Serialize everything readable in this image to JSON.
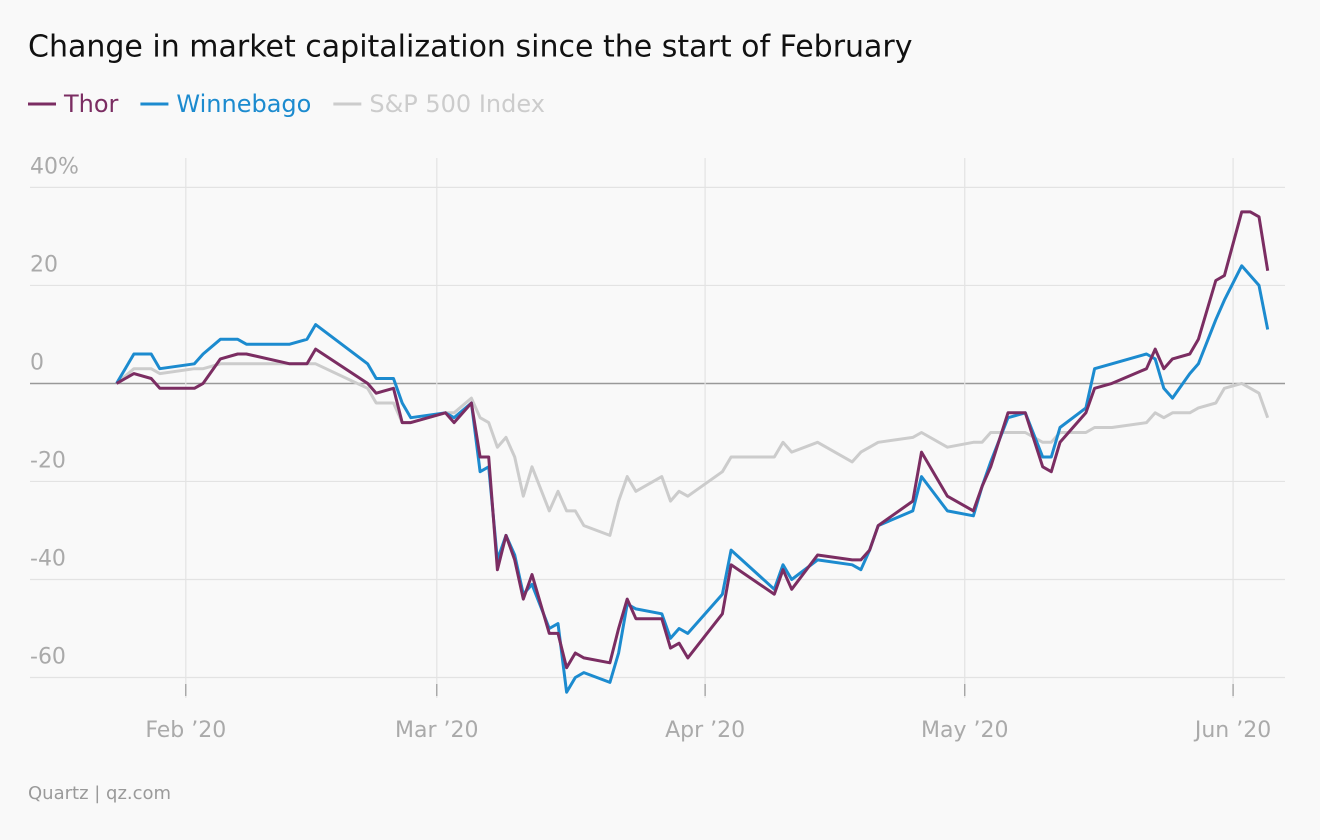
{
  "chart_data": {
    "type": "line",
    "title": "Change in market capitalization since the start of February",
    "source": "Quartz | qz.com",
    "x": [
      24,
      26,
      28,
      29,
      33,
      34,
      36,
      38,
      39,
      44,
      46,
      47,
      53,
      54,
      56,
      57,
      58,
      62,
      63,
      65,
      66,
      67,
      68,
      69,
      70,
      71,
      72,
      74,
      75,
      76,
      77,
      78,
      81,
      82,
      83,
      84,
      87,
      88,
      89,
      90,
      94,
      95,
      100,
      101,
      102,
      105,
      109,
      110,
      111,
      112,
      116,
      117,
      120,
      123,
      124,
      125,
      127,
      129,
      131,
      132,
      133,
      136,
      137,
      139,
      143,
      144,
      145,
      146,
      148,
      149,
      151,
      152,
      154,
      155,
      156,
      157
    ],
    "series": [
      {
        "name": "Thor",
        "color": "#7b2d62",
        "values": [
          0,
          2,
          1,
          -1,
          -1,
          0,
          5,
          6,
          6,
          4,
          4,
          7,
          0,
          -2,
          -1,
          -8,
          -8,
          -6,
          -8,
          -4,
          -15,
          -15,
          -38,
          -31,
          -36,
          -44,
          -39,
          -51,
          -51,
          -58,
          -55,
          -56,
          -57,
          -50,
          -44,
          -48,
          -48,
          -54,
          -53,
          -56,
          -47,
          -37,
          -43,
          -38,
          -42,
          -35,
          -36,
          -36,
          -34,
          -29,
          -24,
          -14,
          -23,
          -26,
          -21,
          -17,
          -6,
          -6,
          -17,
          -18,
          -12,
          -6,
          -1,
          0,
          3,
          7,
          3,
          5,
          6,
          9,
          21,
          22,
          35,
          35,
          34,
          23
        ]
      },
      {
        "name": "Winnebago",
        "color": "#1c8bcf",
        "values": [
          0,
          6,
          6,
          3,
          4,
          6,
          9,
          9,
          8,
          8,
          9,
          12,
          4,
          1,
          1,
          -4,
          -7,
          -6,
          -7,
          -4,
          -18,
          -17,
          -36,
          -31,
          -35,
          -43,
          -41,
          -50,
          -49,
          -63,
          -60,
          -59,
          -61,
          -55,
          -45,
          -46,
          -47,
          -52,
          -50,
          -51,
          -43,
          -34,
          -42,
          -37,
          -40,
          -36,
          -37,
          -38,
          -34,
          -29,
          -26,
          -19,
          -26,
          -27,
          -21,
          -16,
          -7,
          -6,
          -15,
          -15,
          -9,
          -5,
          3,
          4,
          6,
          5,
          -1,
          -3,
          2,
          4,
          13,
          17,
          24,
          22,
          20,
          11
        ]
      },
      {
        "name": "S&P 500 Index",
        "color": "#cccccc",
        "values": [
          0,
          3,
          3,
          2,
          3,
          3,
          4,
          4,
          4,
          4,
          4,
          4,
          -1,
          -4,
          -4,
          -8,
          -8,
          -6,
          -6,
          -3,
          -7,
          -8,
          -13,
          -11,
          -15,
          -23,
          -17,
          -26,
          -22,
          -26,
          -26,
          -29,
          -31,
          -24,
          -19,
          -22,
          -19,
          -24,
          -22,
          -23,
          -18,
          -15,
          -15,
          -12,
          -14,
          -12,
          -16,
          -14,
          -13,
          -12,
          -11,
          -10,
          -13,
          -12,
          -12,
          -10,
          -10,
          -10,
          -12,
          -12,
          -10,
          -10,
          -9,
          -9,
          -8,
          -6,
          -7,
          -6,
          -6,
          -5,
          -4,
          -1,
          0,
          -1,
          -2,
          -7
        ]
      }
    ],
    "xlim": [
      14,
      159
    ],
    "xticks": [
      {
        "value": 32,
        "label": "Feb ’20"
      },
      {
        "value": 61,
        "label": "Mar ’20"
      },
      {
        "value": 92,
        "label": "Apr ’20"
      },
      {
        "value": 122,
        "label": "May ’20"
      },
      {
        "value": 153,
        "label": "Jun ’20"
      }
    ],
    "ylim": [
      -65,
      46
    ],
    "yticks": [
      {
        "value": 40,
        "label": "40%"
      },
      20,
      0,
      -20,
      -40,
      -60
    ],
    "grid": true,
    "legend": "top-left"
  }
}
